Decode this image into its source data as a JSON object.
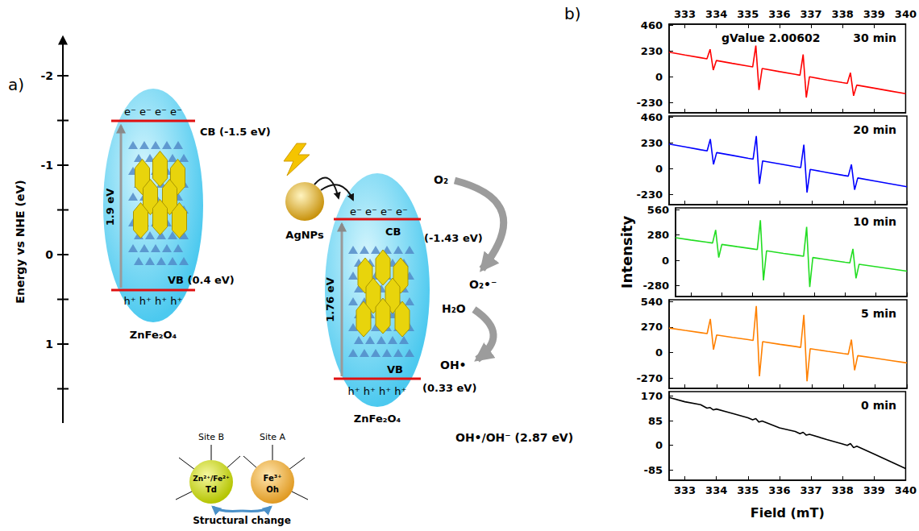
{
  "panels": {
    "a": "a)",
    "b": "b)"
  },
  "diagram": {
    "energy_axis": {
      "title": "Energy vs NHE (eV)",
      "ticks": [
        -2,
        -1,
        0,
        1
      ]
    },
    "pristine": {
      "name": "ZnFe₂O₄",
      "cb": "CB (-1.5 eV)",
      "vb": "VB (0.4 eV)",
      "gap": "1.9 eV",
      "electrons": "e⁻ e⁻ e⁻ e⁻",
      "holes": "h⁺ h⁺ h⁺ h⁺"
    },
    "composite": {
      "name": "ZnFe₂O₄",
      "cocatalyst": "AgNPs",
      "cb": "CB",
      "cb_energy": "(-1.43 eV)",
      "vb": "VB",
      "vb_energy": "(0.33 eV)",
      "gap": "1.76 eV",
      "electrons": "e⁻ e⁻ e⁻ e⁻",
      "holes": "h⁺ h⁺ h⁺ h⁺"
    },
    "reactions": {
      "reductant": "O₂",
      "reduced": "O₂•⁻",
      "oxidant": "H₂O",
      "oxidized": "OH•",
      "potential": "OH•/OH⁻ (2.87 eV)"
    },
    "sites": {
      "b": {
        "label": "Site B",
        "ion": "Zn²⁺/Fe²⁺",
        "geometry": "Td"
      },
      "a": {
        "label": "Site A",
        "ion": "Fe³⁺",
        "geometry": "Oh"
      },
      "caption": "Structural change"
    }
  },
  "chart_data": [
    {
      "type": "line",
      "title": "30 min",
      "annotations": [
        "gValue 2.00602"
      ],
      "color": "#ff0000",
      "x": [
        332.5,
        333,
        333.5,
        333.7,
        333.8,
        333.9,
        334,
        334.5,
        335,
        335.15,
        335.25,
        335.35,
        335.45,
        336,
        336.5,
        336.65,
        336.75,
        336.85,
        336.95,
        337.5,
        338,
        338.15,
        338.25,
        338.35,
        338.45,
        339,
        339.5,
        340
      ],
      "values": [
        220,
        195,
        171,
        161,
        246,
        61,
        146,
        121,
        97,
        89,
        279,
        -116,
        75,
        47,
        23,
        15,
        200,
        -184,
        1,
        -27,
        -51,
        -58,
        37,
        -168,
        -73,
        -100,
        -125,
        -150
      ],
      "xlim": [
        332.5,
        340
      ],
      "xticks": [
        333,
        334,
        335,
        336,
        337,
        338,
        339,
        340
      ],
      "ylim": [
        -320,
        470
      ],
      "yticks": [
        -230,
        0,
        230,
        460
      ],
      "grid": false,
      "tick_labels": true
    },
    {
      "type": "line",
      "title": "20 min",
      "color": "#0000ff",
      "x": [
        332.5,
        333,
        333.5,
        333.7,
        333.8,
        333.9,
        334,
        334.5,
        335,
        335.15,
        335.25,
        335.35,
        335.45,
        336,
        336.5,
        336.65,
        336.75,
        336.85,
        336.95,
        337.5,
        338,
        338.15,
        338.25,
        338.35,
        338.45,
        339,
        339.5,
        340
      ],
      "values": [
        220,
        195,
        169,
        159,
        264,
        39,
        144,
        119,
        93,
        86,
        291,
        -134,
        70,
        43,
        17,
        10,
        215,
        -211,
        -6,
        -34,
        -59,
        -66,
        38,
        -187,
        -82,
        -110,
        -135,
        -160
      ],
      "xlim": [
        332.5,
        340
      ],
      "xticks": [
        333,
        334,
        335,
        336,
        337,
        338,
        339,
        340
      ],
      "ylim": [
        -320,
        470
      ],
      "yticks": [
        -230,
        0,
        230,
        460
      ],
      "grid": false,
      "tick_labels": "y"
    },
    {
      "type": "line",
      "title": "10 min",
      "color": "#22dd22",
      "y_label": "Intensity",
      "x": [
        332.5,
        333,
        333.5,
        333.7,
        333.8,
        333.9,
        334,
        334.5,
        335,
        335.15,
        335.25,
        335.35,
        335.45,
        336,
        336.5,
        336.65,
        336.75,
        336.85,
        336.95,
        337.5,
        338,
        338.15,
        338.25,
        338.35,
        338.45,
        339,
        339.5,
        340
      ],
      "values": [
        250,
        225,
        201,
        191,
        336,
        31,
        176,
        151,
        127,
        119,
        444,
        -221,
        105,
        77,
        53,
        45,
        370,
        -294,
        31,
        3,
        -21,
        -28,
        127,
        -198,
        -43,
        -70,
        -95,
        -120
      ],
      "xlim": [
        332.5,
        340
      ],
      "xticks": [
        333,
        334,
        335,
        336,
        337,
        338,
        339,
        340
      ],
      "ylim": [
        -400,
        580
      ],
      "yticks": [
        -280,
        0,
        280,
        560
      ],
      "grid": false,
      "tick_labels": "y"
    },
    {
      "type": "line",
      "title": "5 min",
      "color": "#ff8000",
      "x": [
        332.5,
        333,
        333.5,
        333.7,
        333.8,
        333.9,
        334,
        334.5,
        335,
        335.15,
        335.25,
        335.35,
        335.45,
        336,
        336.5,
        336.65,
        336.75,
        336.85,
        336.95,
        337.5,
        338,
        338.15,
        338.25,
        338.35,
        338.45,
        339,
        339.5,
        340
      ],
      "values": [
        260,
        235,
        211,
        201,
        356,
        31,
        186,
        161,
        137,
        129,
        494,
        -251,
        115,
        87,
        63,
        55,
        400,
        -304,
        41,
        13,
        -11,
        -18,
        137,
        -188,
        -33,
        -60,
        -85,
        -110
      ],
      "xlim": [
        332.5,
        340
      ],
      "xticks": [
        333,
        334,
        335,
        336,
        337,
        338,
        339,
        340
      ],
      "ylim": [
        -380,
        560
      ],
      "yticks": [
        -270,
        0,
        270,
        540
      ],
      "grid": false,
      "tick_labels": "y"
    },
    {
      "type": "line",
      "title": "0 min",
      "color": "#000000",
      "x_label": "Field (mT)",
      "x": [
        332.5,
        333,
        333.5,
        333.7,
        333.8,
        333.9,
        334,
        334.5,
        335,
        335.15,
        335.25,
        335.35,
        335.45,
        336,
        336.5,
        336.65,
        336.75,
        336.85,
        336.95,
        337.5,
        338,
        338.15,
        338.25,
        338.35,
        338.45,
        339,
        339.5,
        340
      ],
      "values": [
        165,
        150,
        140,
        128,
        130,
        122,
        125,
        110,
        95,
        88,
        92,
        80,
        84,
        60,
        48,
        40,
        45,
        35,
        38,
        20,
        5,
        0,
        6,
        -8,
        -3,
        -30,
        -55,
        -80
      ],
      "xlim": [
        332.5,
        340
      ],
      "xticks": [
        333,
        334,
        335,
        336,
        337,
        338,
        339,
        340
      ],
      "ylim": [
        -120,
        185
      ],
      "yticks": [
        -85,
        0,
        85,
        170
      ],
      "grid": false,
      "tick_labels": true
    }
  ]
}
